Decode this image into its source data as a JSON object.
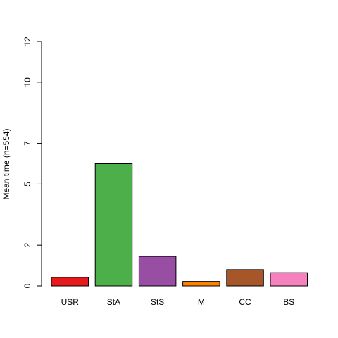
{
  "chart_data": {
    "type": "bar",
    "title": "",
    "xlabel": "",
    "ylabel": "Mean time (n=554)",
    "categories": [
      "USR",
      "StA",
      "StS",
      "M",
      "CC",
      "BS"
    ],
    "values": [
      0.42,
      6.0,
      1.45,
      0.22,
      0.8,
      0.65
    ],
    "colors": [
      "#e41a1c",
      "#4daf4a",
      "#984ea3",
      "#ff7f00",
      "#a65628",
      "#f781bf"
    ],
    "yticks": [
      0,
      2,
      5,
      7,
      10,
      12
    ],
    "ylim": [
      0,
      12
    ],
    "grid": false,
    "legend": "none"
  }
}
